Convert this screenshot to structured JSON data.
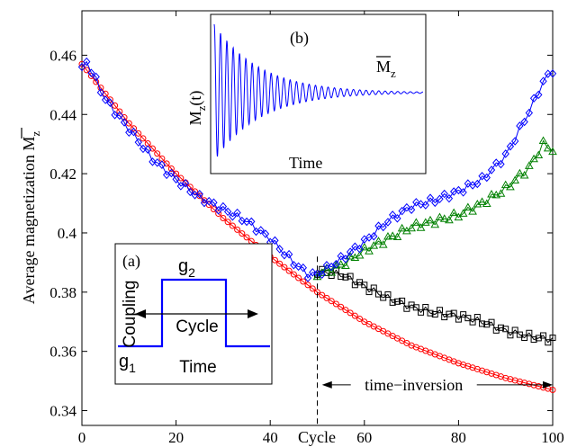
{
  "chart_data": {
    "type": "line",
    "title": "",
    "xlabel": "Cycle",
    "ylabel": "Average magnetization M",
    "ylabel_sub": "z",
    "xlim": [
      0,
      100
    ],
    "ylim": [
      0.335,
      0.475
    ],
    "xticks": [
      "0",
      "20",
      "40",
      "60",
      "80",
      "100"
    ],
    "yticks": [
      "0.34",
      "0.36",
      "0.38",
      "0.4",
      "0.42",
      "0.44",
      "0.46"
    ],
    "xtick_values": [
      0,
      20,
      40,
      60,
      80,
      100
    ],
    "ytick_values": [
      0.34,
      0.36,
      0.38,
      0.4,
      0.42,
      0.44,
      0.46
    ],
    "series": [
      {
        "marker": "circle",
        "color": "#ff0000",
        "x": [
          0,
          10,
          20,
          30,
          40,
          50,
          60,
          70,
          80,
          90,
          100
        ],
        "y": [
          0.457,
          0.437,
          0.42,
          0.405,
          0.392,
          0.38,
          0.37,
          0.362,
          0.356,
          0.351,
          0.347
        ]
      },
      {
        "marker": "diamond",
        "color": "#0000ff",
        "x": [
          0,
          1,
          5,
          10,
          15,
          20,
          25,
          30,
          35,
          40,
          45,
          48,
          50,
          55,
          60,
          65,
          70,
          75,
          80,
          85,
          90,
          95,
          98,
          100
        ],
        "y": [
          0.455,
          0.458,
          0.445,
          0.435,
          0.425,
          0.418,
          0.412,
          0.408,
          0.404,
          0.398,
          0.39,
          0.386,
          0.386,
          0.391,
          0.397,
          0.404,
          0.409,
          0.411,
          0.414,
          0.418,
          0.426,
          0.441,
          0.451,
          0.455
        ]
      },
      {
        "marker": "triangle",
        "color": "#008000",
        "x": [
          50,
          55,
          60,
          65,
          70,
          75,
          80,
          85,
          90,
          95,
          98,
          100
        ],
        "y": [
          0.386,
          0.389,
          0.394,
          0.398,
          0.402,
          0.404,
          0.406,
          0.41,
          0.415,
          0.422,
          0.43,
          0.428
        ]
      },
      {
        "marker": "square",
        "color": "#000000",
        "x": [
          50,
          55,
          60,
          65,
          70,
          75,
          80,
          85,
          90,
          95,
          100
        ],
        "y": [
          0.387,
          0.386,
          0.382,
          0.378,
          0.375,
          0.373,
          0.372,
          0.37,
          0.367,
          0.365,
          0.364
        ]
      }
    ],
    "vline_x": 50,
    "annotation": {
      "text": "time−inversion",
      "x_from": 51,
      "x_to": 100,
      "y": 0.3487
    }
  },
  "inset_a": {
    "label": "(a)",
    "ylabel": "Coupling",
    "xlabel": "Time",
    "g1": "g",
    "g1_sub": "1",
    "g2": "g",
    "g2_sub": "2",
    "cycle": "Cycle"
  },
  "inset_b": {
    "label": "(b)",
    "ylabel": "M",
    "ylabel_sub": "z",
    "ylabel_tail": "(t)",
    "xlabel": "Time",
    "mbar": "M",
    "mbar_sub": "z"
  },
  "colors": {
    "red": "#ff0000",
    "blue": "#0000ff",
    "green": "#008000",
    "black": "#000000"
  }
}
